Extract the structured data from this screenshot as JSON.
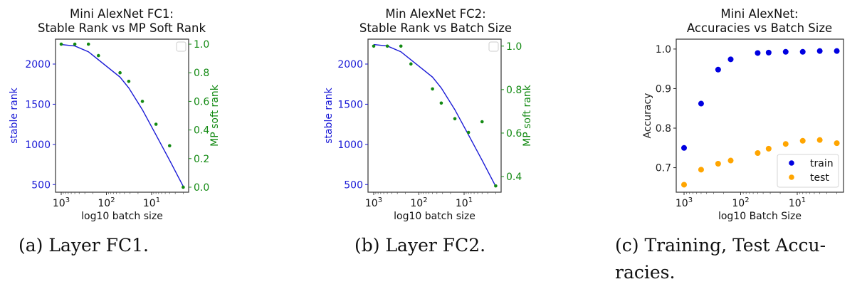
{
  "chart_data": [
    {
      "id": "a",
      "type": "line",
      "title": "Mini AlexNet FC1:\nStable Rank vs MP Soft Rank",
      "title_lines": [
        "Mini AlexNet FC1:",
        "Stable Rank vs MP Soft Rank"
      ],
      "xlabel": "log10 batch size",
      "x_scale": "log",
      "x_inverted": true,
      "x_ticks": [
        {
          "value": 1000,
          "label": "10",
          "exp": "3"
        },
        {
          "value": 100,
          "label": "10",
          "exp": "2"
        },
        {
          "value": 10,
          "label": "10",
          "exp": "1"
        }
      ],
      "x": [
        1000,
        500,
        250,
        150,
        50,
        32,
        16,
        8,
        4,
        2
      ],
      "ylabel": "stable rank",
      "ylim": [
        405,
        2310
      ],
      "y_ticks": [
        500,
        1000,
        1500,
        2000
      ],
      "y2label": "MP soft rank",
      "y2lim": [
        -0.035,
        1.035
      ],
      "y2_ticks": [
        "0.0",
        "0.2",
        "0.4",
        "0.6",
        "0.8",
        "1.0"
      ],
      "legend": {
        "position": "upper right",
        "entries": []
      },
      "series": [
        {
          "name": "stable rank",
          "type": "line",
          "axis": "left",
          "color": "#1a1ad6",
          "x": [
            1000,
            500,
            250,
            50,
            32,
            16,
            8,
            4,
            2
          ],
          "values": [
            2243,
            2225,
            2153,
            1838,
            1703,
            1432,
            1117,
            802,
            478
          ]
        },
        {
          "name": "MP soft rank",
          "type": "scatter",
          "axis": "right",
          "color": "#138a13",
          "x": [
            1000,
            500,
            250,
            150,
            50,
            32,
            16,
            8,
            4,
            2
          ],
          "values": [
            1.0,
            1.0,
            1.0,
            0.92,
            0.8,
            0.74,
            0.6,
            0.44,
            0.29,
            0.0
          ]
        }
      ]
    },
    {
      "id": "b",
      "type": "line",
      "title": "Min AlexNet FC2:\nStable Rank vs Batch Size",
      "title_lines": [
        "Min AlexNet FC2:",
        "Stable Rank vs Batch Size"
      ],
      "xlabel": "log10 batch size",
      "x_scale": "log",
      "x_inverted": true,
      "x_ticks": [
        {
          "value": 1000,
          "label": "10",
          "exp": "3"
        },
        {
          "value": 100,
          "label": "10",
          "exp": "2"
        },
        {
          "value": 10,
          "label": "10",
          "exp": "1"
        }
      ],
      "x": [
        1000,
        500,
        250,
        150,
        50,
        32,
        16,
        8,
        4,
        2
      ],
      "ylabel": "stable rank",
      "ylim": [
        405,
        2310
      ],
      "y_ticks": [
        500,
        1000,
        1500,
        2000
      ],
      "y2label": "MP soft rank",
      "y2lim": [
        0.328,
        1.032
      ],
      "y2_ticks": [
        "0.4",
        "0.6",
        "0.8",
        "1.0"
      ],
      "legend": {
        "position": "upper right",
        "entries": []
      },
      "series": [
        {
          "name": "stable rank",
          "type": "line",
          "axis": "left",
          "color": "#1a1ad6",
          "x": [
            1000,
            500,
            250,
            50,
            32,
            16,
            8,
            4,
            2
          ],
          "values": [
            2243,
            2225,
            2153,
            1838,
            1703,
            1432,
            1117,
            802,
            478
          ]
        },
        {
          "name": "MP soft rank",
          "type": "scatter",
          "axis": "right",
          "color": "#138a13",
          "x": [
            1000,
            500,
            250,
            150,
            50,
            32,
            16,
            8,
            4,
            2
          ],
          "values": [
            1.0,
            1.0,
            1.0,
            0.918,
            0.803,
            0.738,
            0.666,
            0.603,
            0.652,
            0.357
          ]
        }
      ]
    },
    {
      "id": "c",
      "type": "scatter",
      "title": "Mini AlexNet:\nAccuracies vs Batch Size",
      "title_lines": [
        "Mini AlexNet:",
        "Accuracies vs Batch Size"
      ],
      "xlabel": "log10 Batch Size",
      "x_scale": "log",
      "x_inverted": true,
      "x_ticks": [
        {
          "value": 1000,
          "label": "10",
          "exp": "3"
        },
        {
          "value": 100,
          "label": "10",
          "exp": "2"
        },
        {
          "value": 10,
          "label": "10",
          "exp": "1"
        }
      ],
      "x": [
        1000,
        500,
        250,
        150,
        50,
        32,
        16,
        8,
        4,
        2
      ],
      "ylabel": "Accuracy",
      "ylim": [
        0.638,
        1.025
      ],
      "y_ticks": [
        "0.7",
        "0.8",
        "0.9",
        "1.0"
      ],
      "legend": {
        "position": "lower right",
        "entries": [
          "train",
          "test"
        ]
      },
      "series": [
        {
          "name": "train",
          "color": "#0000e0",
          "values": [
            0.75,
            0.862,
            0.948,
            0.974,
            0.99,
            0.991,
            0.993,
            0.993,
            0.995,
            0.995
          ]
        },
        {
          "name": "test",
          "color": "#ffa500",
          "values": [
            0.657,
            0.695,
            0.71,
            0.718,
            0.737,
            0.748,
            0.76,
            0.768,
            0.77,
            0.762
          ]
        }
      ]
    }
  ],
  "captions": {
    "a": "(a) Layer FC1.",
    "b": "(b) Layer FC2.",
    "c_line1": "(c) Training, Test Accu-",
    "c_line2": "racies."
  }
}
